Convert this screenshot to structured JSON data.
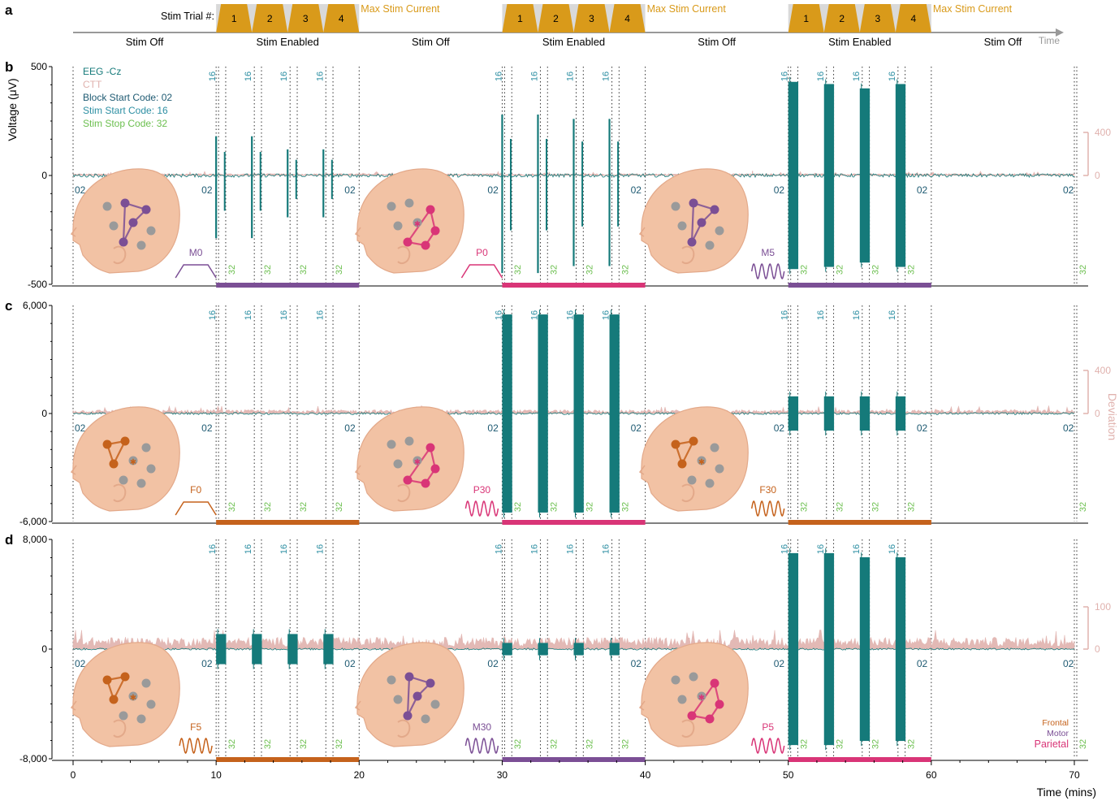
{
  "panel_labels": {
    "a": "a",
    "b": "b",
    "c": "c",
    "d": "d"
  },
  "timeline": {
    "stim_trial_label": "Stim Trial #:",
    "max_current_label": "Max Stim Current",
    "time_arrow_label": "Time",
    "segments": [
      {
        "label": "Stim Off",
        "start": 0,
        "end": 10,
        "enabled": false
      },
      {
        "label": "Stim Enabled",
        "start": 10,
        "end": 20,
        "enabled": true
      },
      {
        "label": "Stim Off",
        "start": 20,
        "end": 30,
        "enabled": false
      },
      {
        "label": "Stim Enabled",
        "start": 30,
        "end": 40,
        "enabled": true
      },
      {
        "label": "Stim Off",
        "start": 40,
        "end": 50,
        "enabled": false
      },
      {
        "label": "Stim Enabled",
        "start": 50,
        "end": 60,
        "enabled": true
      },
      {
        "label": "Stim Off",
        "start": 60,
        "end": 70,
        "enabled": false
      }
    ],
    "trial_numbers": [
      "1",
      "2",
      "3",
      "4"
    ],
    "colors": {
      "pulse": "#d99a1a",
      "pulse_bg": "#d9d9d9",
      "axis": "#999999"
    }
  },
  "legend": {
    "eeg": "EEG -Cz",
    "ctt": "CTT",
    "block": "Block Start Code: 02",
    "stim_start": "Stim Start Code: 16",
    "stim_stop": "Stim Stop Code: 32",
    "colors": {
      "eeg": "#157a7a",
      "ctt": "#e0b2ae",
      "block": "#1e5a72",
      "stim_start": "#2d8fa3",
      "stim_stop": "#6bbf4e"
    }
  },
  "region_legend": {
    "frontal": "Frontal",
    "motor": "Motor",
    "parietal": "Parietal",
    "colors": {
      "frontal": "#c5621c",
      "motor": "#7b4f95",
      "parietal": "#d93577"
    }
  },
  "codes": {
    "block": "02",
    "start": "16",
    "stop": "32"
  },
  "chart_data": {
    "type": "line",
    "xlabel": "Time (mins)",
    "ylabel": "Voltage (μV)",
    "right_axis_label": "Deviation",
    "xlim": [
      0,
      70
    ],
    "x_ticks": [
      "0",
      "10",
      "20",
      "30",
      "40",
      "50",
      "60",
      "70"
    ],
    "block_start_times": [
      0,
      10,
      20,
      30,
      40,
      50,
      60,
      70
    ],
    "panels": [
      {
        "id": "b",
        "ylim": [
          -500,
          500
        ],
        "y_ticks": [
          "500",
          "0",
          "-500"
        ],
        "deviation_ticks": [
          "400",
          "0"
        ],
        "deviation_max": 400,
        "blocks": [
          {
            "label": "M0",
            "region": "motor",
            "waveform": "trapezoid",
            "start": 10,
            "end": 20
          },
          {
            "label": "P0",
            "region": "parietal",
            "waveform": "trapezoid",
            "start": 30,
            "end": 40
          },
          {
            "label": "M5",
            "region": "motor",
            "waveform": "sine",
            "start": 50,
            "end": 60
          }
        ],
        "stim_start_times": [
          10,
          12.5,
          15,
          17.5,
          30,
          32.5,
          35,
          37.5,
          50,
          52.5,
          55,
          57.5
        ],
        "stim_stop_times": [
          10.5,
          13,
          15.5,
          18,
          30.5,
          33,
          35.5,
          38,
          50.5,
          53,
          55.5,
          58,
          70
        ],
        "eeg_bursts": [
          {
            "start": 10,
            "end": 10.6,
            "amplitude": 180,
            "type": "spike"
          },
          {
            "start": 12.5,
            "end": 13.1,
            "amplitude": 180,
            "type": "spike"
          },
          {
            "start": 15,
            "end": 15.6,
            "amplitude": 120,
            "type": "spike"
          },
          {
            "start": 17.5,
            "end": 18.1,
            "amplitude": 120,
            "type": "spike"
          },
          {
            "start": 30,
            "end": 30.6,
            "amplitude": 280,
            "type": "spike"
          },
          {
            "start": 32.5,
            "end": 33.1,
            "amplitude": 280,
            "type": "spike"
          },
          {
            "start": 35,
            "end": 35.6,
            "amplitude": 260,
            "type": "spike"
          },
          {
            "start": 37.5,
            "end": 38.1,
            "amplitude": 260,
            "type": "spike"
          },
          {
            "start": 50,
            "end": 50.7,
            "amplitude": 430,
            "type": "block"
          },
          {
            "start": 52.5,
            "end": 53.2,
            "amplitude": 420,
            "type": "block"
          },
          {
            "start": 55,
            "end": 55.7,
            "amplitude": 400,
            "type": "block"
          },
          {
            "start": 57.5,
            "end": 58.2,
            "amplitude": 420,
            "type": "block"
          }
        ],
        "noise": 8,
        "ctt_level": 18,
        "ctt_peak": {
          "x": 47.5,
          "value": 170
        }
      },
      {
        "id": "c",
        "ylim": [
          -6000,
          6000
        ],
        "y_ticks": [
          "6,000",
          "0",
          "-6,000"
        ],
        "deviation_ticks": [
          "400",
          "0"
        ],
        "deviation_max": 400,
        "blocks": [
          {
            "label": "F0",
            "region": "frontal",
            "waveform": "trapezoid",
            "start": 10,
            "end": 20
          },
          {
            "label": "P30",
            "region": "parietal",
            "waveform": "sine",
            "start": 30,
            "end": 40
          },
          {
            "label": "F30",
            "region": "frontal",
            "waveform": "sine",
            "start": 50,
            "end": 60
          }
        ],
        "stim_start_times": [
          10,
          12.5,
          15,
          17.5,
          30,
          32.5,
          35,
          37.5,
          50,
          52.5,
          55,
          57.5
        ],
        "stim_stop_times": [
          10.5,
          13,
          15.5,
          18,
          30.5,
          33,
          35.5,
          38,
          50.5,
          53,
          55.5,
          58,
          70
        ],
        "eeg_bursts": [
          {
            "start": 30,
            "end": 30.7,
            "amplitude": 5500,
            "type": "block"
          },
          {
            "start": 32.5,
            "end": 33.2,
            "amplitude": 5500,
            "type": "block"
          },
          {
            "start": 35,
            "end": 35.7,
            "amplitude": 5500,
            "type": "block"
          },
          {
            "start": 37.5,
            "end": 38.2,
            "amplitude": 5500,
            "type": "block"
          },
          {
            "start": 50,
            "end": 50.7,
            "amplitude": 950,
            "type": "block"
          },
          {
            "start": 52.5,
            "end": 53.2,
            "amplitude": 950,
            "type": "block"
          },
          {
            "start": 55,
            "end": 55.7,
            "amplitude": 950,
            "type": "block"
          },
          {
            "start": 57.5,
            "end": 58.2,
            "amplitude": 950,
            "type": "block"
          }
        ],
        "noise": 60,
        "ctt_level": 35,
        "ctt_peak": null
      },
      {
        "id": "d",
        "ylim": [
          -8000,
          8000
        ],
        "y_ticks": [
          "8,000",
          "0",
          "-8,000"
        ],
        "deviation_ticks": [
          "100",
          "0"
        ],
        "deviation_max": 100,
        "blocks": [
          {
            "label": "F5",
            "region": "frontal",
            "waveform": "sine",
            "start": 10,
            "end": 20
          },
          {
            "label": "M30",
            "region": "motor",
            "waveform": "sine",
            "start": 30,
            "end": 40
          },
          {
            "label": "P5",
            "region": "parietal",
            "waveform": "sine",
            "start": 50,
            "end": 60
          }
        ],
        "stim_start_times": [
          10,
          12.5,
          15,
          17.5,
          30,
          32.5,
          35,
          37.5,
          50,
          52.5,
          55,
          57.5
        ],
        "stim_stop_times": [
          10.5,
          13,
          15.5,
          18,
          30.5,
          33,
          35.5,
          38,
          50.5,
          53,
          55.5,
          58,
          70
        ],
        "eeg_bursts": [
          {
            "start": 10,
            "end": 10.7,
            "amplitude": 1100,
            "type": "block"
          },
          {
            "start": 12.5,
            "end": 13.2,
            "amplitude": 1100,
            "type": "block"
          },
          {
            "start": 15,
            "end": 15.7,
            "amplitude": 1100,
            "type": "block"
          },
          {
            "start": 17.5,
            "end": 18.2,
            "amplitude": 1100,
            "type": "block"
          },
          {
            "start": 30,
            "end": 30.7,
            "amplitude": 450,
            "type": "block"
          },
          {
            "start": 32.5,
            "end": 33.2,
            "amplitude": 450,
            "type": "block"
          },
          {
            "start": 35,
            "end": 35.7,
            "amplitude": 450,
            "type": "block"
          },
          {
            "start": 37.5,
            "end": 38.2,
            "amplitude": 450,
            "type": "block"
          },
          {
            "start": 50,
            "end": 50.7,
            "amplitude": 7000,
            "type": "block"
          },
          {
            "start": 52.5,
            "end": 53.2,
            "amplitude": 7000,
            "type": "block"
          },
          {
            "start": 55,
            "end": 55.7,
            "amplitude": 6700,
            "type": "block"
          },
          {
            "start": 57.5,
            "end": 58.2,
            "amplitude": 6700,
            "type": "block"
          }
        ],
        "noise": 70,
        "ctt_level": 28,
        "ctt_peak": null
      }
    ]
  }
}
